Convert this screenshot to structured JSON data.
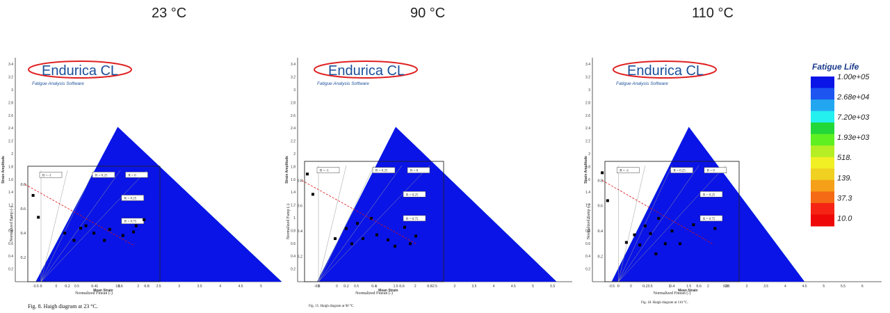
{
  "titles": [
    "23 °C",
    "90 °C",
    "110 °C"
  ],
  "logo": {
    "name": "Endurica CL",
    "tagline": "Fatigue Analysis Software"
  },
  "axes": {
    "strain_amplitude": "Strain Amplitude",
    "mean_strain": "Mean Strain",
    "overlay_y": "Normalized F",
    "overlay_y_sub": "amp",
    "overlay_y_tail": " (-)",
    "overlay_x": "Normalized F",
    "overlay_x_sub": "mean",
    "overlay_x_tail": " (-)"
  },
  "legend": {
    "title": "Fatigue Life",
    "labels": [
      "1.00e+05",
      "2.68e+04",
      "7.20e+03",
      "1.93e+03",
      "518.",
      "139.",
      "37.3",
      "10.0"
    ],
    "colors": [
      "#0a14e6",
      "#1c55f0",
      "#23a6f0",
      "#24f0f0",
      "#22d838",
      "#5ff022",
      "#b5ee24",
      "#f0f024",
      "#f0d020",
      "#f5a018",
      "#f56a14",
      "#f52414",
      "#ee0808"
    ]
  },
  "captions": [
    "Fig. 8. Haigh diagram at 23 °C.",
    "Fig. 15. Haigh diagram at 90 °C.",
    "Fig. 18. Haigh diagram at 110 °C."
  ],
  "ratio_labels": [
    "R = -1",
    "R = 0.25",
    "R = 0",
    "R = 0.25",
    "R = 0.75"
  ],
  "chart_data": [
    {
      "type": "scatter",
      "title": "23 °C",
      "ylabel": "Strain Amplitude",
      "xlabel": "Mean Strain",
      "xlim": [
        -1,
        5.5
      ],
      "ylim": [
        0,
        3.5
      ],
      "xticks": [
        -0.5,
        0,
        0.5,
        1,
        1.5,
        2,
        2.5,
        3,
        3.5,
        4,
        4.5,
        5
      ],
      "yticks": [
        0.2,
        0.4,
        0.6,
        0.8,
        1,
        1.2,
        1.4,
        1.6,
        1.8,
        2,
        2.2,
        2.4,
        2.6,
        2.8,
        3,
        3.2,
        3.4
      ],
      "overlay_xticks": [
        "0",
        "0.2",
        "0.4",
        "0.6",
        "0.8"
      ],
      "overlay_yticks": [
        "0.2",
        "0.4",
        "0.6",
        "0.8"
      ],
      "points_normalized": [
        [
          -0.06,
          0.71
        ],
        [
          -0.02,
          0.53
        ],
        [
          0.18,
          0.4
        ],
        [
          0.25,
          0.34
        ],
        [
          0.3,
          0.44
        ],
        [
          0.34,
          0.46
        ],
        [
          0.4,
          0.4
        ],
        [
          0.48,
          0.34
        ],
        [
          0.52,
          0.43
        ],
        [
          0.62,
          0.38
        ],
        [
          0.7,
          0.41
        ],
        [
          0.78,
          0.51
        ],
        [
          0.72,
          0.46
        ]
      ]
    },
    {
      "type": "scatter",
      "title": "90 °C",
      "ylabel": "Strain Amplitude",
      "xlabel": "Mean Strain",
      "xlim": [
        -1,
        6
      ],
      "ylim": [
        0,
        3.5
      ],
      "xticks": [
        -0.5,
        0,
        0.5,
        1,
        1.5,
        2,
        2.5,
        3,
        3.5,
        4,
        4.5,
        5,
        5.5
      ],
      "yticks": [
        0.2,
        0.4,
        0.6,
        0.8,
        1,
        1.2,
        1.4,
        1.6,
        1.8,
        2,
        2.2,
        2.4,
        2.6,
        2.8,
        3,
        3.2,
        3.4
      ],
      "overlay_xticks": [
        "0",
        "0.2",
        "0.4",
        "0.6",
        "0.8"
      ],
      "overlay_yticks": [
        "0.2",
        "0.4",
        "0.6",
        "0.8"
      ],
      "points_normalized": [
        [
          -0.08,
          0.85
        ],
        [
          -0.04,
          0.69
        ],
        [
          0.12,
          0.34
        ],
        [
          0.2,
          0.42
        ],
        [
          0.24,
          0.3
        ],
        [
          0.28,
          0.46
        ],
        [
          0.32,
          0.34
        ],
        [
          0.38,
          0.5
        ],
        [
          0.42,
          0.37
        ],
        [
          0.5,
          0.33
        ],
        [
          0.55,
          0.28
        ],
        [
          0.62,
          0.43
        ],
        [
          0.66,
          0.3
        ],
        [
          0.7,
          0.36
        ]
      ]
    },
    {
      "type": "scatter",
      "title": "110 °C",
      "ylabel": "Strain Amplitude",
      "xlabel": "Mean Strain",
      "xlim": [
        -1,
        6.5
      ],
      "ylim": [
        0,
        3.5
      ],
      "xticks": [
        -0.5,
        0,
        0.5,
        1,
        1.5,
        2,
        2.5,
        3,
        3.5,
        4,
        4.5,
        5,
        5.5,
        6
      ],
      "yticks": [
        0.2,
        0.4,
        0.6,
        0.8,
        1,
        1.2,
        1.4,
        1.6,
        1.8,
        2,
        2.2,
        2.4,
        2.6,
        2.8,
        3,
        3.2,
        3.4
      ],
      "overlay_xticks": [
        "0",
        "0.2",
        "0.4",
        "0.6",
        "0.8"
      ],
      "overlay_yticks": [
        "0.2",
        "0.4",
        "0.6",
        "0.8"
      ],
      "points_normalized": [
        [
          -0.12,
          0.86
        ],
        [
          -0.08,
          0.64
        ],
        [
          0.06,
          0.31
        ],
        [
          0.12,
          0.37
        ],
        [
          0.16,
          0.29
        ],
        [
          0.2,
          0.44
        ],
        [
          0.24,
          0.38
        ],
        [
          0.28,
          0.22
        ],
        [
          0.3,
          0.5
        ],
        [
          0.35,
          0.3
        ],
        [
          0.4,
          0.4
        ],
        [
          0.46,
          0.3
        ],
        [
          0.56,
          0.45
        ],
        [
          0.72,
          0.42
        ]
      ]
    }
  ]
}
